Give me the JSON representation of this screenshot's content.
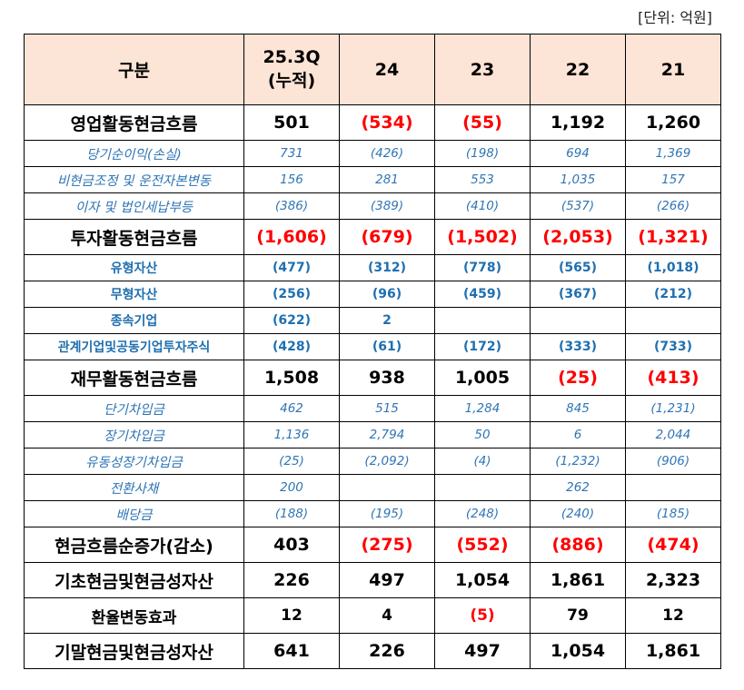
{
  "unit_label": "[단위:  억원]",
  "header": {
    "label": "구분",
    "cols": [
      {
        "line1": "25.3Q",
        "line2": "(누적)"
      },
      {
        "line1": "24",
        "line2": ""
      },
      {
        "line1": "23",
        "line2": ""
      },
      {
        "line1": "22",
        "line2": ""
      },
      {
        "line1": "21",
        "line2": ""
      }
    ]
  },
  "rows": [
    {
      "style": "major",
      "label": "영업활동현금흐름",
      "values": [
        "501",
        "(534)",
        "(55)",
        "1,192",
        "1,260"
      ]
    },
    {
      "style": "sub-i",
      "label": "당기순이익(손실)",
      "values": [
        "731",
        "(426)",
        "(198)",
        "694",
        "1,369"
      ]
    },
    {
      "style": "sub-i",
      "label": "비현금조정 및 운전자본변동",
      "values": [
        "156",
        "281",
        "553",
        "1,035",
        "157"
      ]
    },
    {
      "style": "sub-i",
      "label": "이자 및 법인세납부등",
      "values": [
        "(386)",
        "(389)",
        "(410)",
        "(537)",
        "(266)"
      ]
    },
    {
      "style": "major",
      "label": "투자활동현금흐름",
      "values": [
        "(1,606)",
        "(679)",
        "(1,502)",
        "(2,053)",
        "(1,321)"
      ]
    },
    {
      "style": "sub-b",
      "label": "유형자산",
      "values": [
        "(477)",
        "(312)",
        "(778)",
        "(565)",
        "(1,018)"
      ]
    },
    {
      "style": "sub-b",
      "label": "무형자산",
      "values": [
        "(256)",
        "(96)",
        "(459)",
        "(367)",
        "(212)"
      ]
    },
    {
      "style": "sub-b",
      "label": "종속기업",
      "values": [
        "(622)",
        "2",
        "",
        "",
        ""
      ]
    },
    {
      "style": "sub-b",
      "label": "관계기업및공동기업투자주식",
      "values": [
        "(428)",
        "(61)",
        "(172)",
        "(333)",
        "(733)"
      ]
    },
    {
      "style": "major",
      "label": "재무활동현금흐름",
      "values": [
        "1,508",
        "938",
        "1,005",
        "(25)",
        "(413)"
      ]
    },
    {
      "style": "sub-i",
      "label": "단기차입금",
      "values": [
        "462",
        "515",
        "1,284",
        "845",
        "(1,231)"
      ]
    },
    {
      "style": "sub-i",
      "label": "장기차입금",
      "values": [
        "1,136",
        "2,794",
        "50",
        "6",
        "2,044"
      ]
    },
    {
      "style": "sub-i",
      "label": "유동성장기차입금",
      "values": [
        "(25)",
        "(2,092)",
        "(4)",
        "(1,232)",
        "(906)"
      ]
    },
    {
      "style": "sub-i",
      "label": "전환사채",
      "values": [
        "200",
        "",
        "",
        "262",
        ""
      ]
    },
    {
      "style": "sub-i",
      "label": "배당금",
      "values": [
        "(188)",
        "(195)",
        "(248)",
        "(240)",
        "(185)"
      ]
    },
    {
      "style": "major",
      "label": "현금흐름순증가(감소)",
      "values": [
        "403",
        "(275)",
        "(552)",
        "(886)",
        "(474)"
      ]
    },
    {
      "style": "major",
      "label": "기초현금및현금성자산",
      "values": [
        "226",
        "497",
        "1,054",
        "1,861",
        "2,323"
      ]
    },
    {
      "style": "major-sm",
      "label": "환율변동효과",
      "values": [
        "12",
        "4",
        "(5)",
        "79",
        "12"
      ]
    },
    {
      "style": "major",
      "label": "기말현금및현금성자산",
      "values": [
        "641",
        "226",
        "497",
        "1,054",
        "1,861"
      ]
    }
  ]
}
